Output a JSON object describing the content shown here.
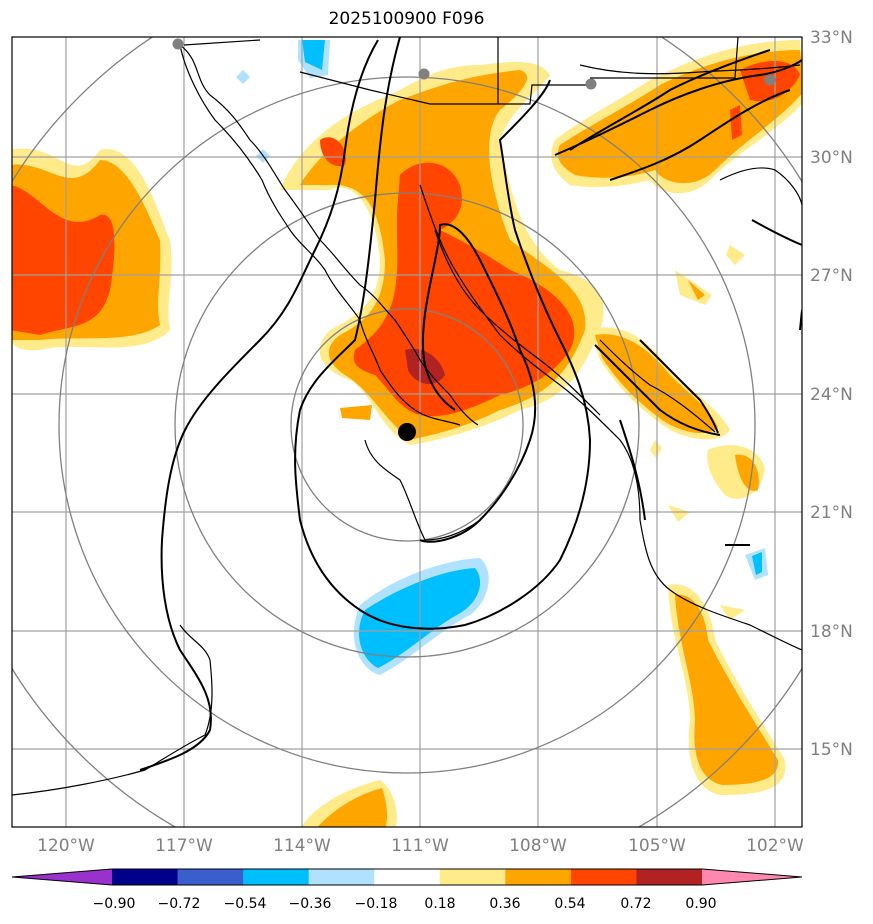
{
  "title": "2025100900 F096",
  "lat_labels": [
    "33°N",
    "30°N",
    "27°N",
    "24°N",
    "21°N",
    "18°N",
    "15°N"
  ],
  "lon_labels": [
    "120°W",
    "117°W",
    "114°W",
    "111°W",
    "108°W",
    "105°W",
    "102°W"
  ],
  "colorbar": {
    "ticks": [
      "−0.90",
      "−0.72",
      "−0.54",
      "−0.36",
      "−0.18",
      "0.18",
      "0.36",
      "0.54",
      "0.72",
      "0.90"
    ],
    "colors": [
      "#9932cc",
      "#00008b",
      "#3a5fcd",
      "#00bfff",
      "#b0e2ff",
      "#ffffff",
      "#ffeb8a",
      "#ffa500",
      "#ff4500",
      "#b22222",
      "#ff88b0"
    ]
  },
  "colors": {
    "light_yellow": "#ffeb8a",
    "orange": "#ffa500",
    "red_orange": "#ff4500",
    "dark_red": "#b22222",
    "deep_sky_blue": "#00bfff",
    "light_blue": "#b0e2ff",
    "grid": "#a0a0a0",
    "range_rings": "#808080"
  },
  "markers": {
    "center": "black-dot",
    "stations": "gray-dots"
  }
}
